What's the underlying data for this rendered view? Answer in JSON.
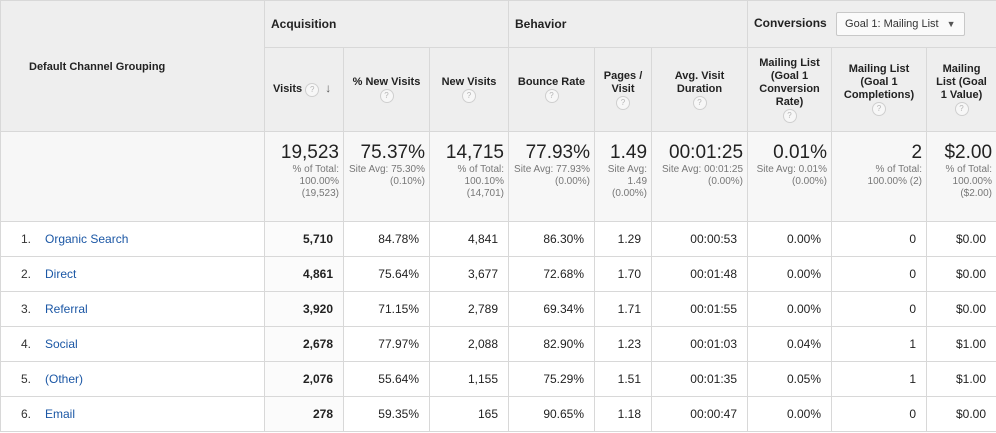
{
  "header": {
    "default_channel_grouping": "Default Channel Grouping",
    "groups": {
      "acquisition": "Acquisition",
      "behavior": "Behavior",
      "conversions": "Conversions"
    },
    "goal_select": "Goal 1: Mailing List",
    "columns": {
      "visits": "Visits",
      "new_visits_pct": "% New Visits",
      "new_visits": "New Visits",
      "bounce_rate": "Bounce Rate",
      "pages_visit": "Pages / Visit",
      "avg_duration": "Avg. Visit Duration",
      "conv_rate": "Mailing List (Goal 1 Conversion Rate)",
      "completions": "Mailing List (Goal 1 Completions)",
      "value": "Mailing List (Goal 1 Value)"
    },
    "help_glyph": "?",
    "sort_glyph": "↓"
  },
  "totals": {
    "visits": {
      "big": "19,523",
      "sub": "% of Total: 100.00% (19,523)"
    },
    "new_visits_pct": {
      "big": "75.37%",
      "sub": "Site Avg: 75.30% (0.10%)"
    },
    "new_visits": {
      "big": "14,715",
      "sub": "% of Total: 100.10% (14,701)"
    },
    "bounce_rate": {
      "big": "77.93%",
      "sub": "Site Avg: 77.93% (0.00%)"
    },
    "pages_visit": {
      "big": "1.49",
      "sub": "Site Avg: 1.49 (0.00%)"
    },
    "avg_duration": {
      "big": "00:01:25",
      "sub": "Site Avg: 00:01:25 (0.00%)"
    },
    "conv_rate": {
      "big": "0.01%",
      "sub": "Site Avg: 0.01% (0.00%)"
    },
    "completions": {
      "big": "2",
      "sub": "% of Total: 100.00% (2)"
    },
    "value": {
      "big": "$2.00",
      "sub": "% of Total: 100.00% ($2.00)"
    }
  },
  "rows": [
    {
      "idx": "1.",
      "name": "Organic Search",
      "visits": "5,710",
      "new_pct": "84.78%",
      "new": "4,841",
      "bounce": "86.30%",
      "ppv": "1.29",
      "dur": "00:00:53",
      "conv": "0.00%",
      "comp": "0",
      "val": "$0.00"
    },
    {
      "idx": "2.",
      "name": "Direct",
      "visits": "4,861",
      "new_pct": "75.64%",
      "new": "3,677",
      "bounce": "72.68%",
      "ppv": "1.70",
      "dur": "00:01:48",
      "conv": "0.00%",
      "comp": "0",
      "val": "$0.00"
    },
    {
      "idx": "3.",
      "name": "Referral",
      "visits": "3,920",
      "new_pct": "71.15%",
      "new": "2,789",
      "bounce": "69.34%",
      "ppv": "1.71",
      "dur": "00:01:55",
      "conv": "0.00%",
      "comp": "0",
      "val": "$0.00"
    },
    {
      "idx": "4.",
      "name": "Social",
      "visits": "2,678",
      "new_pct": "77.97%",
      "new": "2,088",
      "bounce": "82.90%",
      "ppv": "1.23",
      "dur": "00:01:03",
      "conv": "0.04%",
      "comp": "1",
      "val": "$1.00"
    },
    {
      "idx": "5.",
      "name": "(Other)",
      "visits": "2,076",
      "new_pct": "55.64%",
      "new": "1,155",
      "bounce": "75.29%",
      "ppv": "1.51",
      "dur": "00:01:35",
      "conv": "0.05%",
      "comp": "1",
      "val": "$1.00"
    },
    {
      "idx": "6.",
      "name": "Email",
      "visits": "278",
      "new_pct": "59.35%",
      "new": "165",
      "bounce": "90.65%",
      "ppv": "1.18",
      "dur": "00:00:47",
      "conv": "0.00%",
      "comp": "0",
      "val": "$0.00"
    }
  ],
  "colors": {
    "link": "#1b57a5",
    "header_bg": "#eeeeee",
    "border": "#d8d8d8"
  }
}
